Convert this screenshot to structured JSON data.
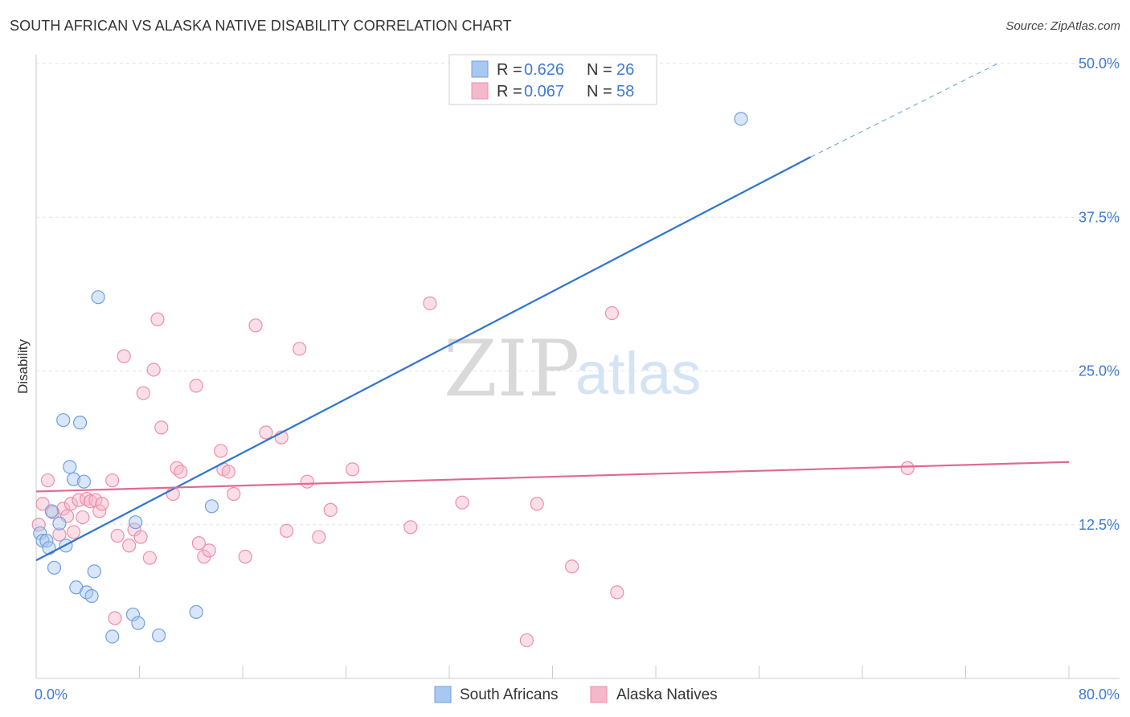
{
  "header": {
    "title": "SOUTH AFRICAN VS ALASKA NATIVE DISABILITY CORRELATION CHART",
    "source": "Source: ZipAtlas.com"
  },
  "watermark": {
    "zip": "ZIP",
    "atlas": "atlas"
  },
  "legend": {
    "rows": [
      {
        "r_label": "R =",
        "r_value": "0.626",
        "n_label": "N =",
        "n_value": "26",
        "color": "#a9c8f0"
      },
      {
        "r_label": "R =",
        "r_value": "0.067",
        "n_label": "N =",
        "n_value": "58",
        "color": "#f5b8ca"
      }
    ]
  },
  "bottom_legend": [
    {
      "label": "South Africans",
      "color": "#a9c8f0"
    },
    {
      "label": "Alaska Natives",
      "color": "#f5b8ca"
    }
  ],
  "chart_data": {
    "type": "scatter",
    "title": "SOUTH AFRICAN VS ALASKA NATIVE DISABILITY CORRELATION CHART",
    "xlabel": "",
    "ylabel": "Disability",
    "xlim": [
      0,
      80
    ],
    "ylim": [
      0,
      50
    ],
    "x_tick_labels": [
      {
        "value": 0,
        "label": "0.0%"
      },
      {
        "value": 80,
        "label": "80.0%"
      }
    ],
    "y_tick_labels": [
      {
        "value": 12.5,
        "label": "12.5%"
      },
      {
        "value": 25,
        "label": "25.0%"
      },
      {
        "value": 37.5,
        "label": "37.5%"
      },
      {
        "value": 50,
        "label": "50.0%"
      }
    ],
    "grid": true,
    "legend_position": "top-center",
    "series": [
      {
        "name": "South Africans",
        "color": "#6fa0e0",
        "fill": "#a9c8f0",
        "trend": {
          "x": [
            0,
            60
          ],
          "y": [
            9.6,
            42.4
          ],
          "dashed_to": [
            74.5,
            50
          ]
        },
        "points": [
          [
            0.3,
            11.8
          ],
          [
            0.5,
            11.2
          ],
          [
            0.8,
            11.2
          ],
          [
            1.0,
            10.6
          ],
          [
            1.2,
            13.6
          ],
          [
            1.4,
            9.0
          ],
          [
            1.8,
            12.6
          ],
          [
            2.1,
            21.0
          ],
          [
            2.3,
            10.8
          ],
          [
            2.6,
            17.2
          ],
          [
            2.9,
            16.2
          ],
          [
            3.1,
            7.4
          ],
          [
            3.4,
            20.8
          ],
          [
            3.7,
            16.0
          ],
          [
            3.9,
            7.0
          ],
          [
            4.3,
            6.7
          ],
          [
            4.5,
            8.7
          ],
          [
            4.8,
            31.0
          ],
          [
            5.9,
            3.4
          ],
          [
            7.5,
            5.2
          ],
          [
            7.7,
            12.7
          ],
          [
            7.9,
            4.5
          ],
          [
            9.5,
            3.5
          ],
          [
            12.4,
            5.4
          ],
          [
            13.6,
            14.0
          ],
          [
            54.6,
            45.5
          ]
        ]
      },
      {
        "name": "Alaska Natives",
        "color": "#ee8eab",
        "fill": "#f5b8ca",
        "trend": {
          "x": [
            0,
            80
          ],
          "y": [
            15.2,
            17.6
          ]
        },
        "points": [
          [
            0.2,
            12.5
          ],
          [
            0.5,
            14.2
          ],
          [
            0.9,
            16.1
          ],
          [
            1.3,
            13.5
          ],
          [
            1.8,
            11.7
          ],
          [
            2.1,
            13.8
          ],
          [
            2.4,
            13.2
          ],
          [
            2.7,
            14.2
          ],
          [
            2.9,
            11.9
          ],
          [
            3.3,
            14.5
          ],
          [
            3.6,
            13.1
          ],
          [
            3.9,
            14.6
          ],
          [
            4.2,
            14.4
          ],
          [
            4.6,
            14.5
          ],
          [
            4.9,
            13.6
          ],
          [
            5.1,
            14.2
          ],
          [
            5.9,
            16.1
          ],
          [
            6.1,
            4.9
          ],
          [
            6.3,
            11.6
          ],
          [
            6.8,
            26.2
          ],
          [
            7.2,
            10.8
          ],
          [
            7.6,
            12.1
          ],
          [
            8.1,
            11.5
          ],
          [
            8.3,
            23.2
          ],
          [
            8.8,
            9.8
          ],
          [
            9.1,
            25.1
          ],
          [
            9.4,
            29.2
          ],
          [
            9.7,
            20.4
          ],
          [
            10.6,
            15.0
          ],
          [
            10.9,
            17.1
          ],
          [
            11.2,
            16.8
          ],
          [
            12.4,
            23.8
          ],
          [
            12.6,
            11.0
          ],
          [
            13.0,
            9.9
          ],
          [
            13.4,
            10.4
          ],
          [
            14.3,
            18.5
          ],
          [
            14.5,
            17.0
          ],
          [
            14.9,
            16.8
          ],
          [
            15.3,
            15.0
          ],
          [
            16.2,
            9.9
          ],
          [
            17.0,
            28.7
          ],
          [
            17.8,
            20.0
          ],
          [
            19.0,
            19.6
          ],
          [
            19.4,
            12.0
          ],
          [
            20.4,
            26.8
          ],
          [
            21.0,
            16.0
          ],
          [
            21.9,
            11.5
          ],
          [
            22.8,
            13.7
          ],
          [
            24.5,
            17.0
          ],
          [
            29.0,
            12.3
          ],
          [
            30.5,
            30.5
          ],
          [
            33.0,
            14.3
          ],
          [
            38.0,
            3.1
          ],
          [
            38.8,
            14.2
          ],
          [
            41.5,
            9.1
          ],
          [
            44.6,
            29.7
          ],
          [
            45.0,
            7.0
          ],
          [
            67.5,
            17.1
          ]
        ]
      }
    ]
  }
}
